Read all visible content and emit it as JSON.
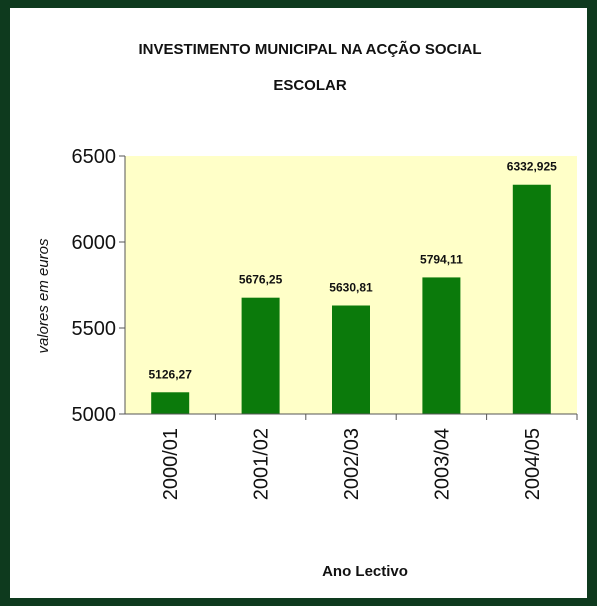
{
  "colors": {
    "background": "#0e3a1e",
    "panel": "#ffffff",
    "plot_area": "#ffffc8",
    "bar": "#0b7a0b",
    "text": "#111111"
  },
  "chart_data": {
    "type": "bar",
    "title_lines": [
      "INVESTIMENTO MUNICIPAL NA ACÇÃO SOCIAL",
      "ESCOLAR"
    ],
    "xlabel": "Ano Lectivo",
    "ylabel": "valores em euros",
    "categories": [
      "2000/01",
      "2001/02",
      "2002/03",
      "2003/04",
      "2004/05"
    ],
    "values": [
      5126.27,
      5676.25,
      5630.81,
      5794.11,
      6332.925
    ],
    "value_labels": [
      "5126,27",
      "5676,25",
      "5630,81",
      "5794,11",
      "6332,925"
    ],
    "yticks": [
      5000,
      5500,
      6000,
      6500
    ],
    "ylim": [
      5000,
      6500
    ],
    "grid": false,
    "legend": "none"
  }
}
